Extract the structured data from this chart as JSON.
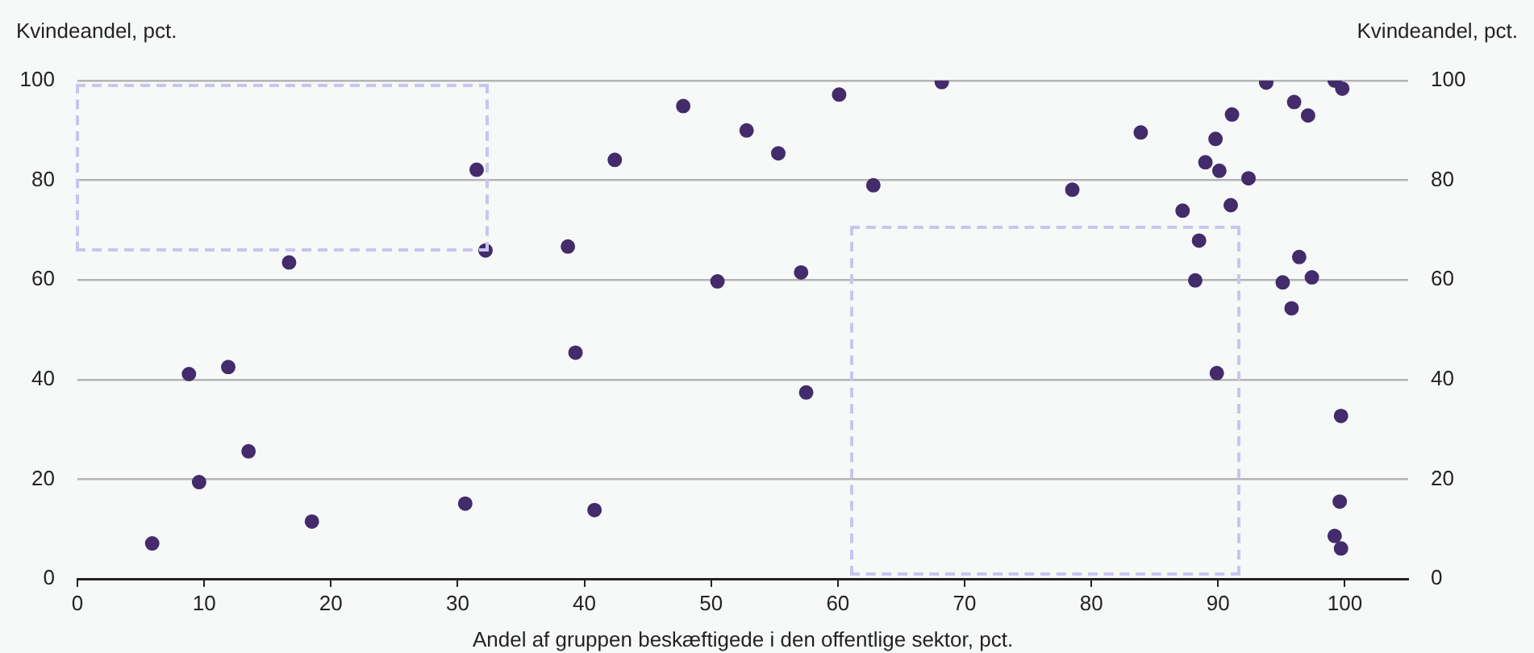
{
  "chart_data": {
    "type": "scatter",
    "xlabel": "Andel af gruppen beskæftigede i den offentlige sektor, pct.",
    "ylabel": "Kvindeandel, pct.",
    "y2label": "Kvindeandel, pct.",
    "xlim": [
      0,
      105
    ],
    "xticks": [
      0,
      10,
      20,
      30,
      40,
      50,
      60,
      70,
      80,
      90,
      100
    ],
    "ylim": [
      0,
      100
    ],
    "yticks": [
      0,
      20,
      40,
      60,
      80,
      100
    ],
    "y2lim": [
      0,
      100
    ],
    "y2ticks": [
      0,
      20,
      40,
      60,
      80,
      100
    ],
    "grid": "y",
    "marker": "circle",
    "series": [
      {
        "color": "#432c6b",
        "x": [
          5.9,
          9.6,
          8.8,
          11.9,
          13.5,
          16.7,
          18.5,
          30.6,
          31.5,
          32.2,
          38.7,
          39.3,
          40.8,
          42.4,
          47.8,
          50.5,
          52.8,
          55.3,
          57.1,
          57.5,
          60.1,
          62.8,
          68.2,
          78.5,
          83.9,
          87.2,
          88.5,
          88.2,
          89.0,
          89.8,
          90.1,
          89.9,
          91.0,
          91.1,
          92.0,
          92.4,
          93.8,
          96.0,
          97.1,
          96.4,
          95.1,
          97.4,
          95.8,
          99.2,
          99.8,
          99.7,
          99.6,
          99.2,
          99.6,
          99.7
        ],
        "values": [
          7.1,
          19.4,
          41.1,
          42.5,
          25.6,
          63.5,
          11.5,
          15.1,
          82.1,
          65.9,
          66.7,
          45.4,
          13.8,
          84.1,
          94.9,
          59.7,
          90.0,
          85.4,
          61.5,
          37.4,
          97.2,
          79.0,
          99.7,
          78.1,
          89.6,
          73.9,
          67.9,
          59.9,
          83.6,
          88.3,
          81.9,
          41.3,
          75.0,
          93.2,
          null,
          80.4,
          99.6,
          95.7,
          93.0,
          64.6,
          59.5,
          60.5,
          54.3,
          100,
          98.4,
          32.7,
          15.5,
          8.6,
          null,
          6.1
        ]
      }
    ]
  }
}
